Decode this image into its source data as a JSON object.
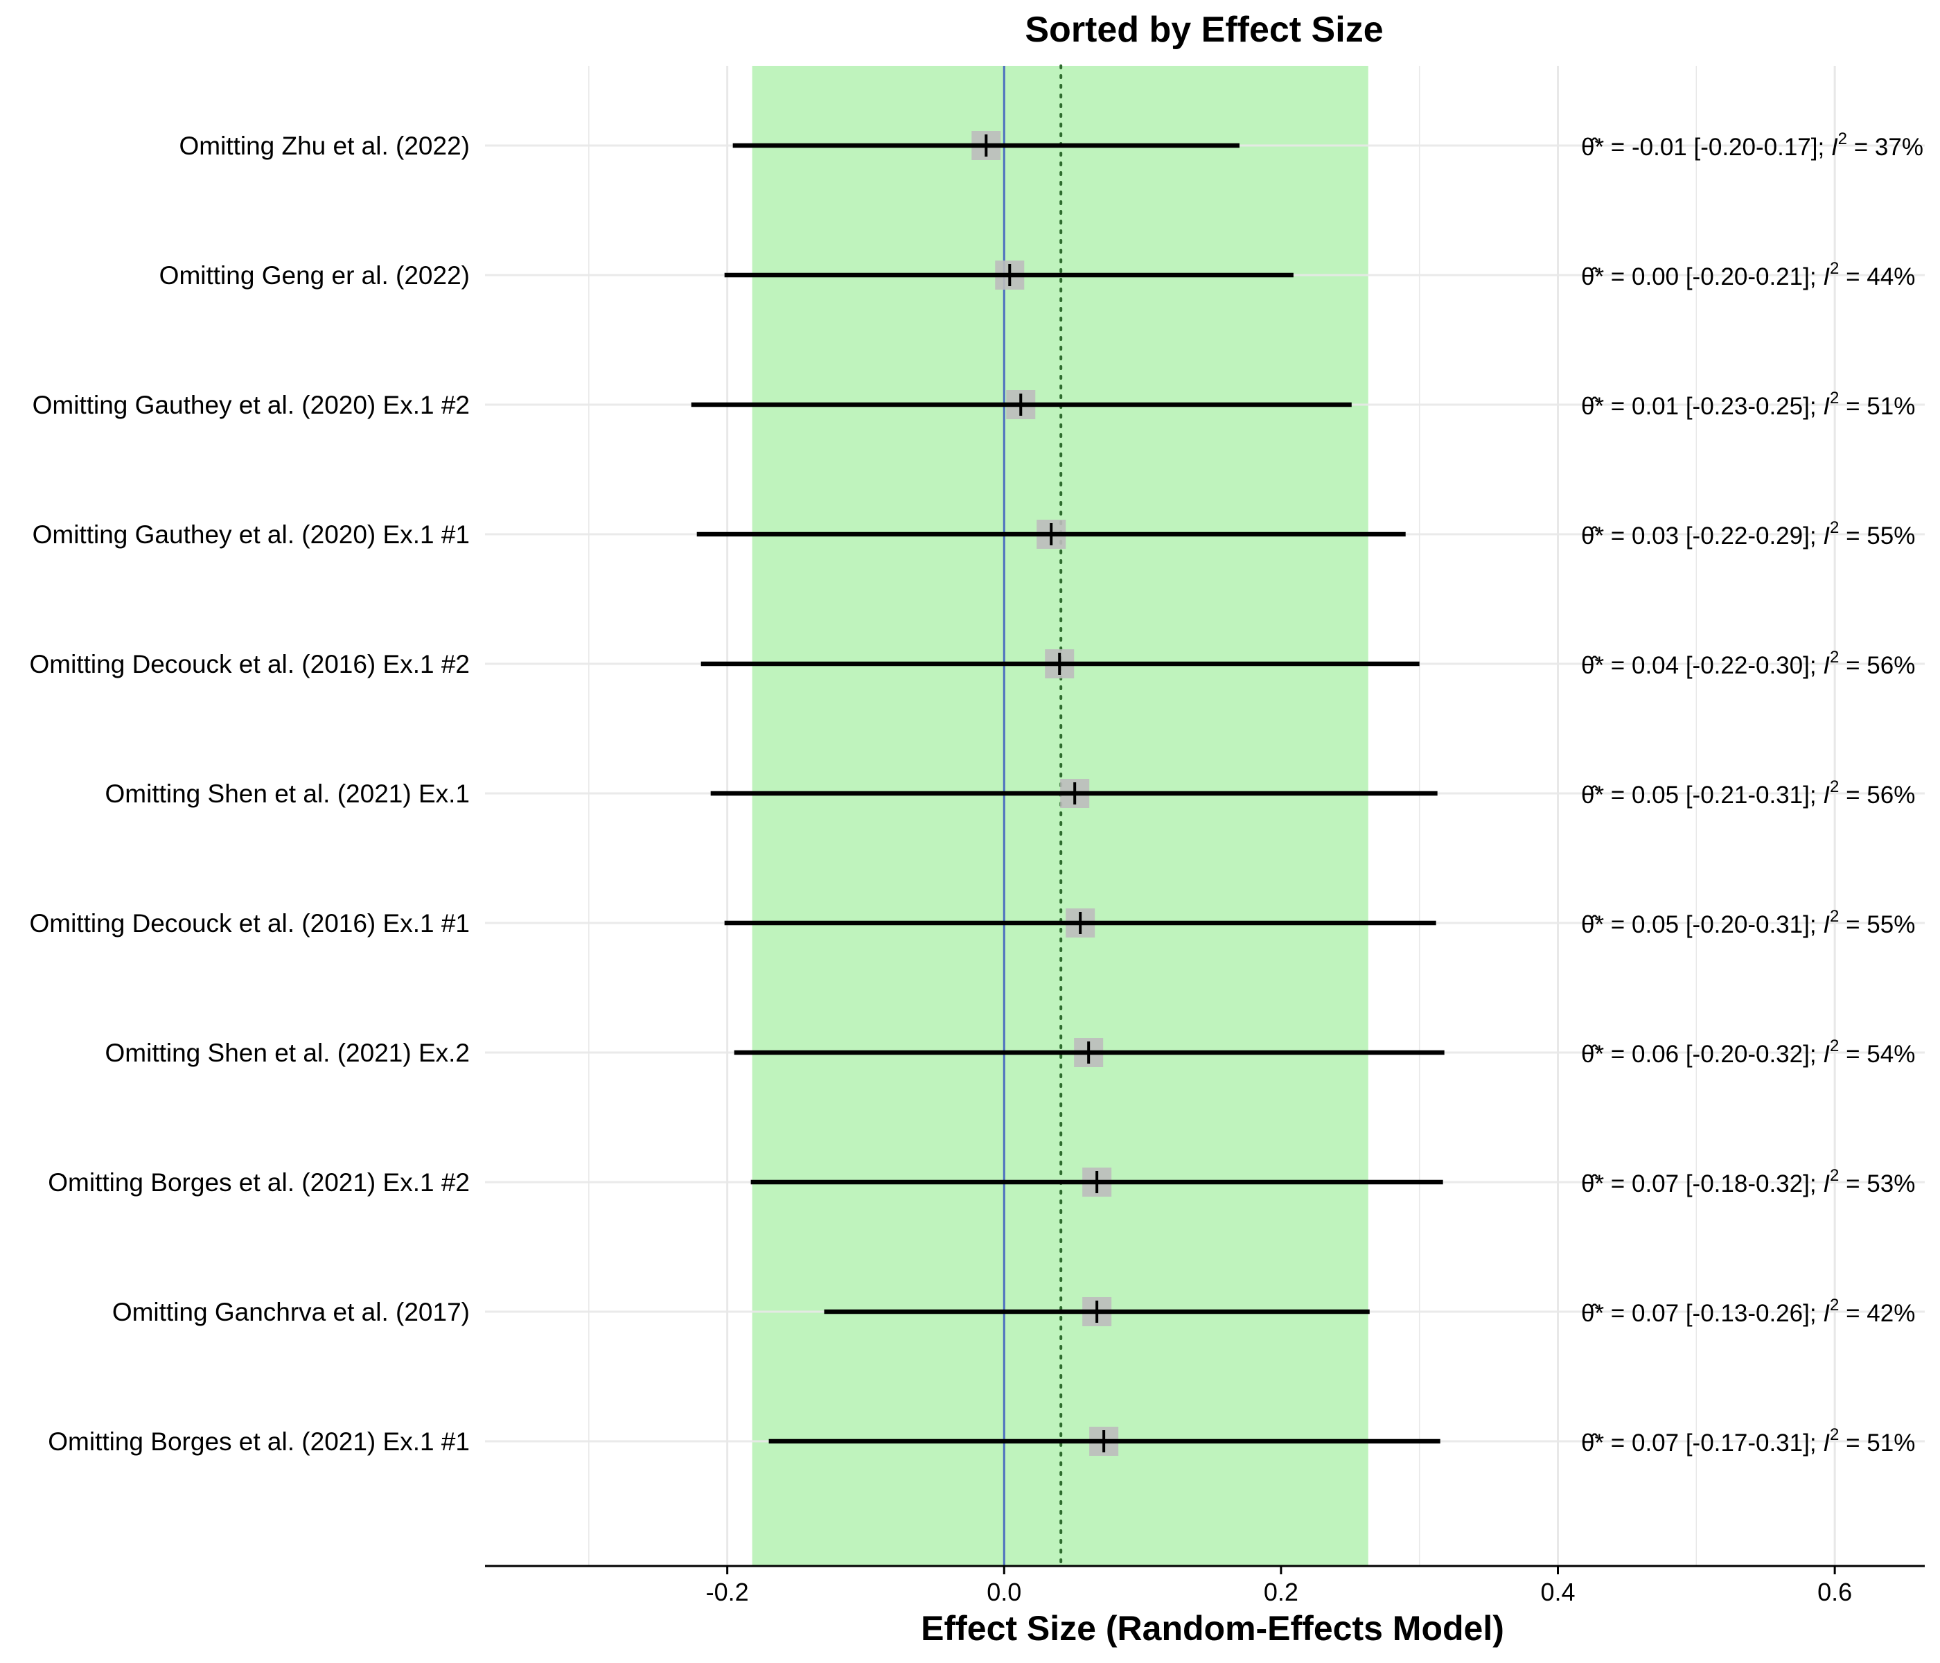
{
  "chart_data": {
    "type": "forest",
    "title": "Sorted by Effect Size",
    "xlabel": "Effect Size (Random-Effects Model)",
    "xlim": [
      -0.375,
      0.665
    ],
    "xticks": [
      -0.2,
      0.0,
      0.2,
      0.4,
      0.6
    ],
    "xtick_labels": [
      "-0.2",
      "0.0",
      "0.2",
      "0.4",
      "0.6"
    ],
    "grid": true,
    "prediction_band": [
      -0.182,
      0.263
    ],
    "reference_line": 0.0,
    "pooled_line": 0.041,
    "colors": {
      "band": "#bff3bd",
      "reference": "#4d6fbf",
      "pooled": "#2e6b2e",
      "marker_box": "#bdbdbd",
      "line": "#000000",
      "grid": "#e8e8e8"
    },
    "annotation_template": {
      "symbol": "θ̂*",
      "i2_symbol": "I",
      "i2_exponent": "2"
    },
    "rows": [
      {
        "label": "Omitting Zhu et al. (2022)",
        "est": -0.013,
        "lo": -0.196,
        "hi": 0.17,
        "est_text": "-0.01",
        "ci_text": "[-0.20-0.17]",
        "i2_text": "37%"
      },
      {
        "label": "Omitting Geng er al. (2022)",
        "est": 0.004,
        "lo": -0.202,
        "hi": 0.209,
        "est_text": "0.00",
        "ci_text": "[-0.20-0.21]",
        "i2_text": "44%"
      },
      {
        "label": "Omitting Gauthey et al. (2020) Ex.1 #2",
        "est": 0.012,
        "lo": -0.226,
        "hi": 0.251,
        "est_text": "0.01",
        "ci_text": "[-0.23-0.25]",
        "i2_text": "51%"
      },
      {
        "label": "Omitting Gauthey et al. (2020) Ex.1 #1",
        "est": 0.034,
        "lo": -0.222,
        "hi": 0.29,
        "est_text": "0.03",
        "ci_text": "[-0.22-0.29]",
        "i2_text": "55%"
      },
      {
        "label": "Omitting Decouck et al. (2016) Ex.1 #2",
        "est": 0.04,
        "lo": -0.219,
        "hi": 0.3,
        "est_text": "0.04",
        "ci_text": "[-0.22-0.30]",
        "i2_text": "56%"
      },
      {
        "label": "Omitting Shen et al. (2021) Ex.1",
        "est": 0.051,
        "lo": -0.212,
        "hi": 0.313,
        "est_text": "0.05",
        "ci_text": "[-0.21-0.31]",
        "i2_text": "56%"
      },
      {
        "label": "Omitting Decouck et al. (2016) Ex.1 #1",
        "est": 0.055,
        "lo": -0.202,
        "hi": 0.312,
        "est_text": "0.05",
        "ci_text": "[-0.20-0.31]",
        "i2_text": "55%"
      },
      {
        "label": "Omitting Shen et al. (2021) Ex.2",
        "est": 0.061,
        "lo": -0.195,
        "hi": 0.318,
        "est_text": "0.06",
        "ci_text": "[-0.20-0.32]",
        "i2_text": "54%"
      },
      {
        "label": "Omitting Borges et al. (2021) Ex.1 #2",
        "est": 0.067,
        "lo": -0.183,
        "hi": 0.317,
        "est_text": "0.07",
        "ci_text": "[-0.18-0.32]",
        "i2_text": "53%"
      },
      {
        "label": "Omitting Ganchrva et al. (2017)",
        "est": 0.067,
        "lo": -0.13,
        "hi": 0.264,
        "est_text": "0.07",
        "ci_text": "[-0.13-0.26]",
        "i2_text": "42%"
      },
      {
        "label": "Omitting Borges et al. (2021) Ex.1 #1",
        "est": 0.072,
        "lo": -0.17,
        "hi": 0.315,
        "est_text": "0.07",
        "ci_text": "[-0.17-0.31]",
        "i2_text": "51%"
      }
    ]
  }
}
